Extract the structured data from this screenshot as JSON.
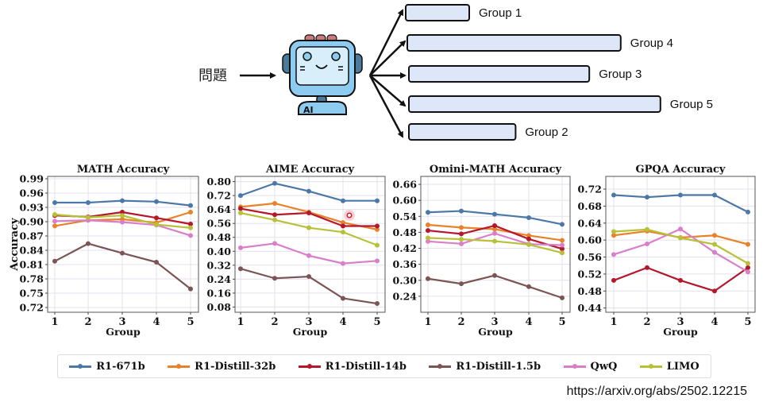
{
  "diagram": {
    "question_label": "問題",
    "robot_badge": "AI",
    "groups": [
      {
        "label": "Group 1",
        "relative_length": 0.25
      },
      {
        "label": "Group 4",
        "relative_length": 0.84
      },
      {
        "label": "Group 3",
        "relative_length": 0.71
      },
      {
        "label": "Group 5",
        "relative_length": 0.99
      },
      {
        "label": "Group 2",
        "relative_length": 0.42
      }
    ],
    "colors": {
      "bar_fill": "#dde7f7",
      "bar_stroke": "#111111",
      "robot_light": "#8ecbf0",
      "robot_screen": "#d8eefb",
      "robot_dark": "#4d7a9c",
      "robot_top": "#c97a80"
    }
  },
  "legend": [
    {
      "name": "R1-671b",
      "color": "#4c78a8"
    },
    {
      "name": "R1-Distill-32b",
      "color": "#e8822a"
    },
    {
      "name": "R1-Distill-14b",
      "color": "#b5172b"
    },
    {
      "name": "R1-Distill-1.5b",
      "color": "#7b5554"
    },
    {
      "name": "QwQ",
      "color": "#d97fc9"
    },
    {
      "name": "LIMO",
      "color": "#b7c137"
    }
  ],
  "source_url": "https://arxiv.org/abs/2502.12215",
  "chart_data": [
    {
      "type": "line",
      "title": "MATH Accuracy",
      "xlabel": "Group",
      "ylabel": "Accuracy",
      "x": [
        1,
        2,
        3,
        4,
        5
      ],
      "yticks": [
        "0.72",
        "0.75",
        "0.78",
        "0.81",
        "0.84",
        "0.87",
        "0.90",
        "0.93",
        "0.96",
        "0.99"
      ],
      "ylim": [
        0.71,
        0.995
      ],
      "grid": true,
      "series": [
        {
          "name": "R1-671b",
          "values": [
            0.94,
            0.94,
            0.944,
            0.942,
            0.934
          ]
        },
        {
          "name": "R1-Distill-32b",
          "values": [
            0.891,
            0.903,
            0.905,
            0.898,
            0.92
          ]
        },
        {
          "name": "R1-Distill-14b",
          "values": [
            0.913,
            0.91,
            0.92,
            0.908,
            0.895
          ]
        },
        {
          "name": "R1-Distill-1.5b",
          "values": [
            0.817,
            0.854,
            0.834,
            0.815,
            0.759
          ]
        },
        {
          "name": "QwQ",
          "values": [
            0.901,
            0.903,
            0.899,
            0.893,
            0.871
          ]
        },
        {
          "name": "LIMO",
          "values": [
            0.915,
            0.909,
            0.913,
            0.894,
            0.887
          ]
        }
      ]
    },
    {
      "type": "line",
      "title": "AIME Accuracy",
      "xlabel": "Group",
      "ylabel": "",
      "x": [
        1,
        2,
        3,
        4,
        5
      ],
      "yticks": [
        "0.08",
        "0.16",
        "0.24",
        "0.32",
        "0.40",
        "0.48",
        "0.56",
        "0.64",
        "0.72",
        "0.80"
      ],
      "ylim": [
        0.05,
        0.83
      ],
      "grid": true,
      "series": [
        {
          "name": "R1-671b",
          "values": [
            0.72,
            0.79,
            0.745,
            0.69,
            0.69
          ]
        },
        {
          "name": "R1-Distill-32b",
          "values": [
            0.655,
            0.675,
            0.625,
            0.565,
            0.525
          ]
        },
        {
          "name": "R1-Distill-14b",
          "values": [
            0.645,
            0.61,
            0.62,
            0.545,
            0.545
          ]
        },
        {
          "name": "R1-Distill-1.5b",
          "values": [
            0.3,
            0.245,
            0.255,
            0.13,
            0.1
          ]
        },
        {
          "name": "QwQ",
          "values": [
            0.42,
            0.445,
            0.375,
            0.33,
            0.345
          ]
        },
        {
          "name": "LIMO",
          "values": [
            0.62,
            0.58,
            0.535,
            0.51,
            0.435
          ]
        }
      ]
    },
    {
      "type": "line",
      "title": "Omini-MATH Accuracy",
      "xlabel": "Group",
      "ylabel": "",
      "x": [
        1,
        2,
        3,
        4,
        5
      ],
      "yticks": [
        "0.24",
        "0.30",
        "0.36",
        "0.42",
        "0.48",
        "0.54",
        "0.60",
        "0.66"
      ],
      "ylim": [
        0.18,
        0.69
      ],
      "grid": true,
      "series": [
        {
          "name": "R1-671b",
          "values": [
            0.555,
            0.56,
            0.548,
            0.535,
            0.51
          ]
        },
        {
          "name": "R1-Distill-32b",
          "values": [
            0.508,
            0.498,
            0.492,
            0.468,
            0.45
          ]
        },
        {
          "name": "R1-Distill-14b",
          "values": [
            0.487,
            0.474,
            0.505,
            0.455,
            0.418
          ]
        },
        {
          "name": "R1-Distill-1.5b",
          "values": [
            0.306,
            0.287,
            0.318,
            0.276,
            0.234
          ]
        },
        {
          "name": "QwQ",
          "values": [
            0.446,
            0.437,
            0.476,
            0.436,
            0.432
          ]
        },
        {
          "name": "LIMO",
          "values": [
            0.459,
            0.454,
            0.447,
            0.434,
            0.403
          ]
        }
      ]
    },
    {
      "type": "line",
      "title": "GPQA Accuracy",
      "xlabel": "Group",
      "ylabel": "",
      "x": [
        1,
        2,
        3,
        4,
        5
      ],
      "yticks": [
        "0.44",
        "0.48",
        "0.52",
        "0.56",
        "0.60",
        "0.64",
        "0.68",
        "0.72"
      ],
      "ylim": [
        0.43,
        0.75
      ],
      "grid": true,
      "series": [
        {
          "name": "R1-671b",
          "values": [
            0.706,
            0.701,
            0.706,
            0.706,
            0.666
          ]
        },
        {
          "name": "R1-Distill-32b",
          "values": [
            0.611,
            0.621,
            0.606,
            0.611,
            0.59
          ]
        },
        {
          "name": "R1-Distill-14b",
          "values": [
            0.505,
            0.535,
            0.505,
            0.48,
            0.535
          ]
        },
        {
          "name": "QwQ",
          "values": [
            0.566,
            0.591,
            0.626,
            0.571,
            0.525
          ]
        },
        {
          "name": "LIMO",
          "values": [
            0.62,
            0.625,
            0.605,
            0.59,
            0.545
          ]
        }
      ]
    }
  ]
}
